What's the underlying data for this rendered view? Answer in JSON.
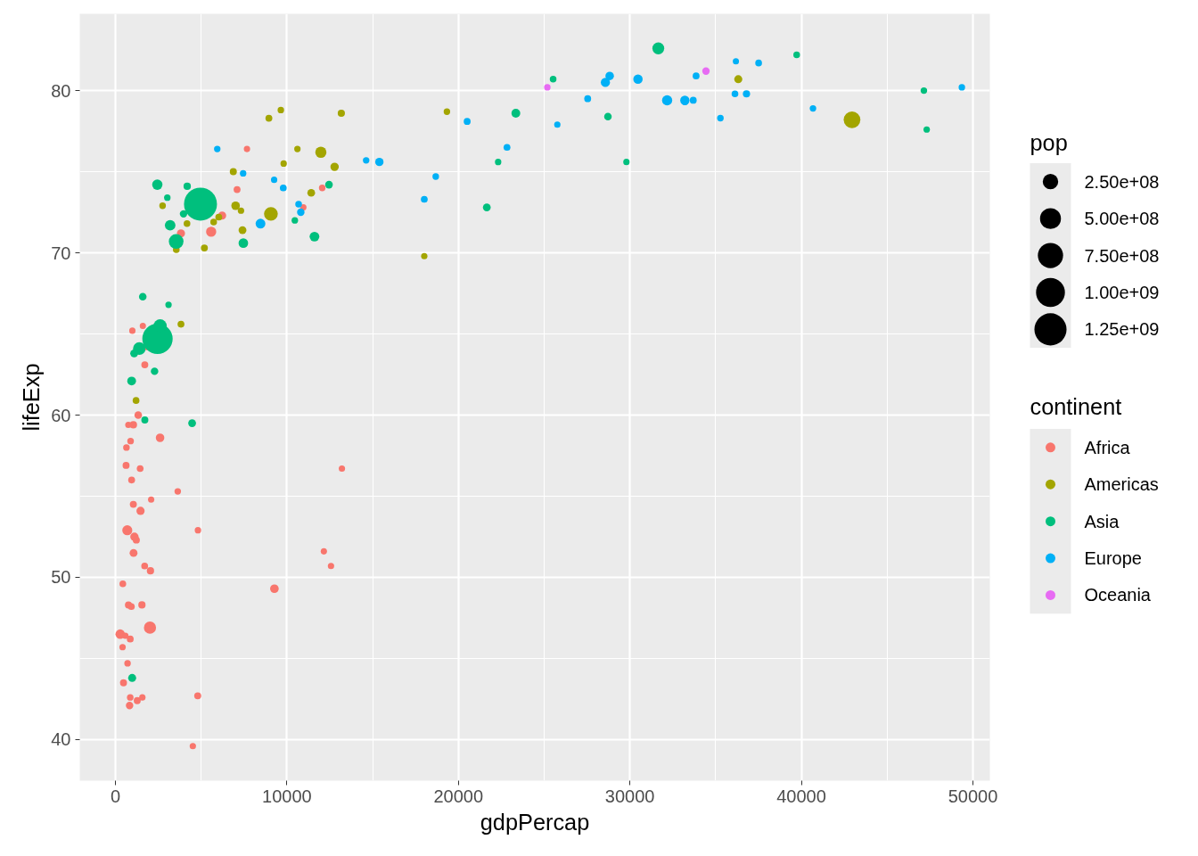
{
  "chart_data": {
    "type": "bubble",
    "xlabel": "gdpPercap",
    "ylabel": "lifeExp",
    "legend_title": "continent",
    "annotations": [
      "pop"
    ],
    "legend": "right",
    "grid": true,
    "xlim": [
      -2080,
      50990
    ],
    "ylim": [
      37.47,
      84.73
    ],
    "xticks": [
      0,
      10000,
      20000,
      30000,
      40000,
      50000
    ],
    "yticks": [
      40,
      50,
      60,
      70,
      80
    ],
    "size_legend": [
      {
        "value": 0.219,
        "label": "2.50e+08"
      },
      {
        "value": 0.401,
        "label": "5.00e+08"
      },
      {
        "value": 0.584,
        "label": "7.50e+08"
      },
      {
        "value": 0.767,
        "label": "1.00e+09"
      },
      {
        "value": 0.95,
        "label": "1.25e+09"
      }
    ],
    "series": [
      {
        "name": "Africa",
        "color": "#f8766d",
        "x": [
          6223,
          4797,
          1441,
          12570,
          1217,
          430,
          2042,
          706,
          1704,
          986,
          278,
          3633,
          1545,
          2082,
          5581,
          12154,
          641,
          691,
          13206,
          753,
          1328,
          943,
          579,
          1463,
          1569,
          415,
          12058,
          1045,
          759,
          1043,
          1803,
          10957,
          3820,
          824,
          4811,
          620,
          2014,
          7670,
          863,
          1598,
          1712,
          863,
          926,
          9270,
          2602,
          4513,
          1107,
          883,
          7093,
          1056,
          1271,
          470
        ],
        "values": [
          72.3,
          42.7,
          56.7,
          50.7,
          52.3,
          49.6,
          50.4,
          44.7,
          50.7,
          65.2,
          46.5,
          55.3,
          48.3,
          54.8,
          71.3,
          51.6,
          58.0,
          52.9,
          56.7,
          59.4,
          60.0,
          56.0,
          46.4,
          54.1,
          42.6,
          45.7,
          74.0,
          59.4,
          48.3,
          54.5,
          64.2,
          72.8,
          71.2,
          42.1,
          52.9,
          56.9,
          46.9,
          76.4,
          46.2,
          65.5,
          63.1,
          42.6,
          48.2,
          49.3,
          58.6,
          39.6,
          52.5,
          58.4,
          73.9,
          51.5,
          42.4,
          43.5
        ],
        "sizes": [
          0.06,
          0.045,
          0.042,
          0.037,
          0.046,
          0.042,
          0.049,
          0.039,
          0.043,
          0.037,
          0.083,
          0.039,
          0.049,
          0.036,
          0.095,
          0.036,
          0.04,
          0.092,
          0.037,
          0.037,
          0.053,
          0.043,
          0.037,
          0.062,
          0.037,
          0.038,
          0.04,
          0.05,
          0.046,
          0.045,
          0.038,
          0.037,
          0.061,
          0.051,
          0.038,
          0.045,
          0.135,
          0.037,
          0.043,
          0.036,
          0.045,
          0.04,
          0.043,
          0.068,
          0.067,
          0.037,
          0.064,
          0.04,
          0.044,
          0.057,
          0.045,
          0.045
        ]
      },
      {
        "name": "Americas",
        "color": "#a3a500",
        "x": [
          12779,
          3822,
          9066,
          36319,
          13172,
          7007,
          9645,
          8948,
          6025,
          6873,
          5728,
          5186,
          1202,
          3548,
          7321,
          11978,
          2749,
          9809,
          4173,
          7409,
          19329,
          18009,
          42952,
          10611,
          11416
        ],
        "values": [
          75.3,
          65.6,
          72.4,
          80.7,
          78.6,
          72.9,
          78.8,
          78.3,
          72.2,
          75.0,
          71.9,
          70.3,
          60.9,
          70.2,
          72.6,
          76.2,
          72.9,
          75.5,
          71.8,
          71.4,
          78.7,
          69.8,
          78.2,
          76.4,
          73.7
        ],
        "sizes": [
          0.065,
          0.043,
          0.175,
          0.06,
          0.048,
          0.068,
          0.039,
          0.044,
          0.043,
          0.046,
          0.041,
          0.045,
          0.042,
          0.041,
          0.038,
          0.115,
          0.04,
          0.038,
          0.041,
          0.057,
          0.039,
          0.037,
          0.256,
          0.038,
          0.055
        ]
      },
      {
        "name": "Asia",
        "color": "#00bf7d",
        "x": [
          975,
          29796,
          1391,
          1714,
          4959,
          39725,
          2452,
          3541,
          11606,
          4471,
          25523,
          31656,
          4519,
          1593,
          23348,
          47307,
          10461,
          12452,
          3096,
          944,
          1091,
          22316,
          2606,
          3190,
          21655,
          47143,
          3970,
          4185,
          28718,
          7458,
          2442,
          3025,
          2281
        ],
        "values": [
          43.8,
          75.6,
          64.1,
          59.7,
          73.0,
          82.2,
          64.7,
          70.7,
          71.0,
          59.5,
          80.7,
          82.6,
          null,
          67.3,
          78.6,
          77.6,
          72.0,
          74.2,
          66.8,
          62.1,
          63.8,
          75.6,
          65.5,
          71.7,
          72.8,
          80.0,
          72.4,
          74.1,
          78.4,
          70.6,
          74.2,
          73.4,
          62.7
        ],
        "sizes": [
          0.059,
          0.037,
          0.146,
          0.046,
          1,
          0.041,
          0.848,
          0.199,
          0.087,
          0.056,
          0.041,
          0.129,
          null,
          0.053,
          0.072,
          0.038,
          0.039,
          0.054,
          0.038,
          0.071,
          0.057,
          0.038,
          0.16,
          0.103,
          0.056,
          0.039,
          0.051,
          0.05,
          0.053,
          0.084,
          0.098,
          0.039,
          0.052
        ]
      },
      {
        "name": "Europe",
        "color": "#00b0f6",
        "x": [
          5937,
          36126,
          33693,
          7446,
          10681,
          14619,
          22833,
          35278,
          33207,
          30470,
          32170,
          27538,
          18009,
          36181,
          40676,
          28570,
          9254,
          36798,
          49357,
          15390,
          20510,
          10808,
          9787,
          18678,
          25768,
          28821,
          33860,
          37506,
          8458,
          33203
        ],
        "values": [
          76.4,
          79.8,
          79.4,
          74.9,
          73.0,
          75.7,
          76.5,
          78.3,
          79.3,
          80.7,
          79.4,
          79.5,
          73.3,
          81.8,
          78.9,
          80.5,
          74.5,
          79.8,
          80.2,
          75.6,
          78.1,
          72.5,
          74.0,
          74.7,
          77.9,
          80.9,
          80.9,
          81.7,
          71.8,
          79.4
        ],
        "sizes": [
          0.039,
          0.042,
          0.044,
          0.039,
          0.041,
          0.039,
          0.043,
          0.04,
          0.04,
          0.081,
          0.096,
          0.044,
          0.043,
          0.036,
          0.039,
          0.078,
          0.037,
          0.048,
          0.039,
          0.064,
          0.044,
          0.052,
          0.043,
          0.04,
          0.037,
          0.066,
          0.043,
          0.042,
          0.088,
          0.08
        ]
      },
      {
        "name": "Oceania",
        "color": "#e76bf3",
        "x": [
          34435,
          25185
        ],
        "values": [
          81.2,
          80.2
        ],
        "sizes": [
          0.051,
          0.039
        ]
      }
    ]
  }
}
